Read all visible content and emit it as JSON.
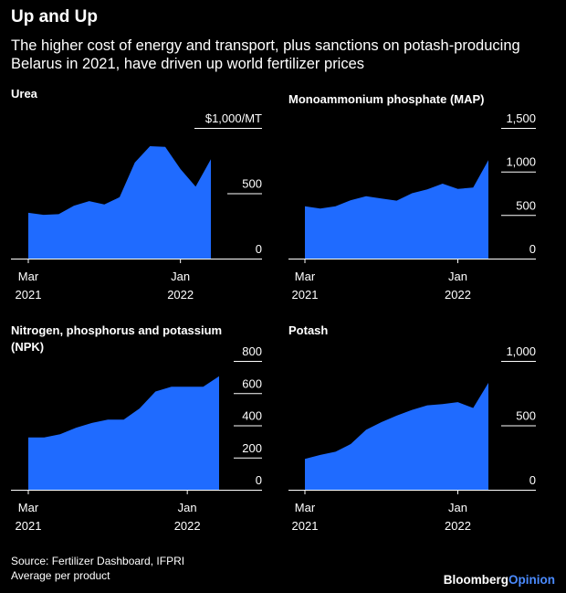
{
  "title": "Up and Up",
  "subtitle": "The higher cost of energy and transport, plus sanctions on potash-producing Belarus in 2021, have driven up world fertilizer prices",
  "footer": {
    "source": "Source: Fertilizer Dashboard, IFPRI",
    "note": "Average per product"
  },
  "brand": {
    "name": "Bloomberg",
    "suffix": "Opinion"
  },
  "colors": {
    "area": "#1f6bff",
    "background": "#000000",
    "text": "#ffffff"
  },
  "chart_data": [
    {
      "type": "area",
      "title": "Urea",
      "x": [
        "Mar 2021",
        "Apr 2021",
        "May 2021",
        "Jun 2021",
        "Jul 2021",
        "Aug 2021",
        "Sep 2021",
        "Oct 2021",
        "Nov 2021",
        "Dec 2021",
        "Jan 2022",
        "Feb 2022",
        "Mar 2022"
      ],
      "values": [
        350,
        335,
        340,
        405,
        440,
        415,
        470,
        735,
        860,
        855,
        685,
        550,
        760
      ],
      "ylim": [
        0,
        1000
      ],
      "yticks": [
        0,
        500
      ],
      "ytick_labels": [
        "0",
        "500"
      ],
      "unit_label": "$1,000/MT",
      "xticks": [
        {
          "label": "Mar",
          "sub": "2021",
          "at": 0
        },
        {
          "label": "Jan",
          "sub": "2022",
          "at": 10
        }
      ]
    },
    {
      "type": "area",
      "title": "Monoammonium phosphate (MAP)",
      "x": [
        "Mar 2021",
        "Apr 2021",
        "May 2021",
        "Jun 2021",
        "Jul 2021",
        "Aug 2021",
        "Sep 2021",
        "Oct 2021",
        "Nov 2021",
        "Dec 2021",
        "Jan 2022",
        "Feb 2022",
        "Mar 2022"
      ],
      "values": [
        600,
        575,
        600,
        670,
        715,
        690,
        665,
        750,
        795,
        860,
        800,
        815,
        1130
      ],
      "ylim": [
        0,
        1500
      ],
      "yticks": [
        0,
        500,
        1000,
        1500
      ],
      "ytick_labels": [
        "0",
        "500",
        "1,000",
        "1,500"
      ],
      "xticks": [
        {
          "label": "Mar",
          "sub": "2021",
          "at": 0
        },
        {
          "label": "Jan",
          "sub": "2022",
          "at": 10
        }
      ]
    },
    {
      "type": "area",
      "title": "Nitrogen, phosphorus and potassium (NPK)",
      "x": [
        "Mar 2021",
        "Apr 2021",
        "May 2021",
        "Jun 2021",
        "Jul 2021",
        "Aug 2021",
        "Sep 2021",
        "Oct 2021",
        "Nov 2021",
        "Dec 2021",
        "Jan 2022",
        "Feb 2022",
        "Mar 2022"
      ],
      "values": [
        325,
        325,
        345,
        385,
        415,
        435,
        435,
        505,
        610,
        640,
        640,
        640,
        705
      ],
      "ylim": [
        0,
        800
      ],
      "yticks": [
        0,
        200,
        400,
        600,
        800
      ],
      "ytick_labels": [
        "0",
        "200",
        "400",
        "600",
        "800"
      ],
      "xticks": [
        {
          "label": "Mar",
          "sub": "2021",
          "at": 0
        },
        {
          "label": "Jan",
          "sub": "2022",
          "at": 10
        }
      ]
    },
    {
      "type": "area",
      "title": "Potash",
      "x": [
        "Mar 2021",
        "Apr 2021",
        "May 2021",
        "Jun 2021",
        "Jul 2021",
        "Aug 2021",
        "Sep 2021",
        "Oct 2021",
        "Nov 2021",
        "Dec 2021",
        "Jan 2022",
        "Feb 2022",
        "Mar 2022"
      ],
      "values": [
        240,
        270,
        295,
        355,
        465,
        525,
        575,
        620,
        655,
        665,
        680,
        635,
        830
      ],
      "ylim": [
        0,
        1000
      ],
      "yticks": [
        0,
        500,
        1000
      ],
      "ytick_labels": [
        "0",
        "500",
        "1,000"
      ],
      "xticks": [
        {
          "label": "Mar",
          "sub": "2021",
          "at": 0
        },
        {
          "label": "Jan",
          "sub": "2022",
          "at": 10
        }
      ]
    }
  ]
}
